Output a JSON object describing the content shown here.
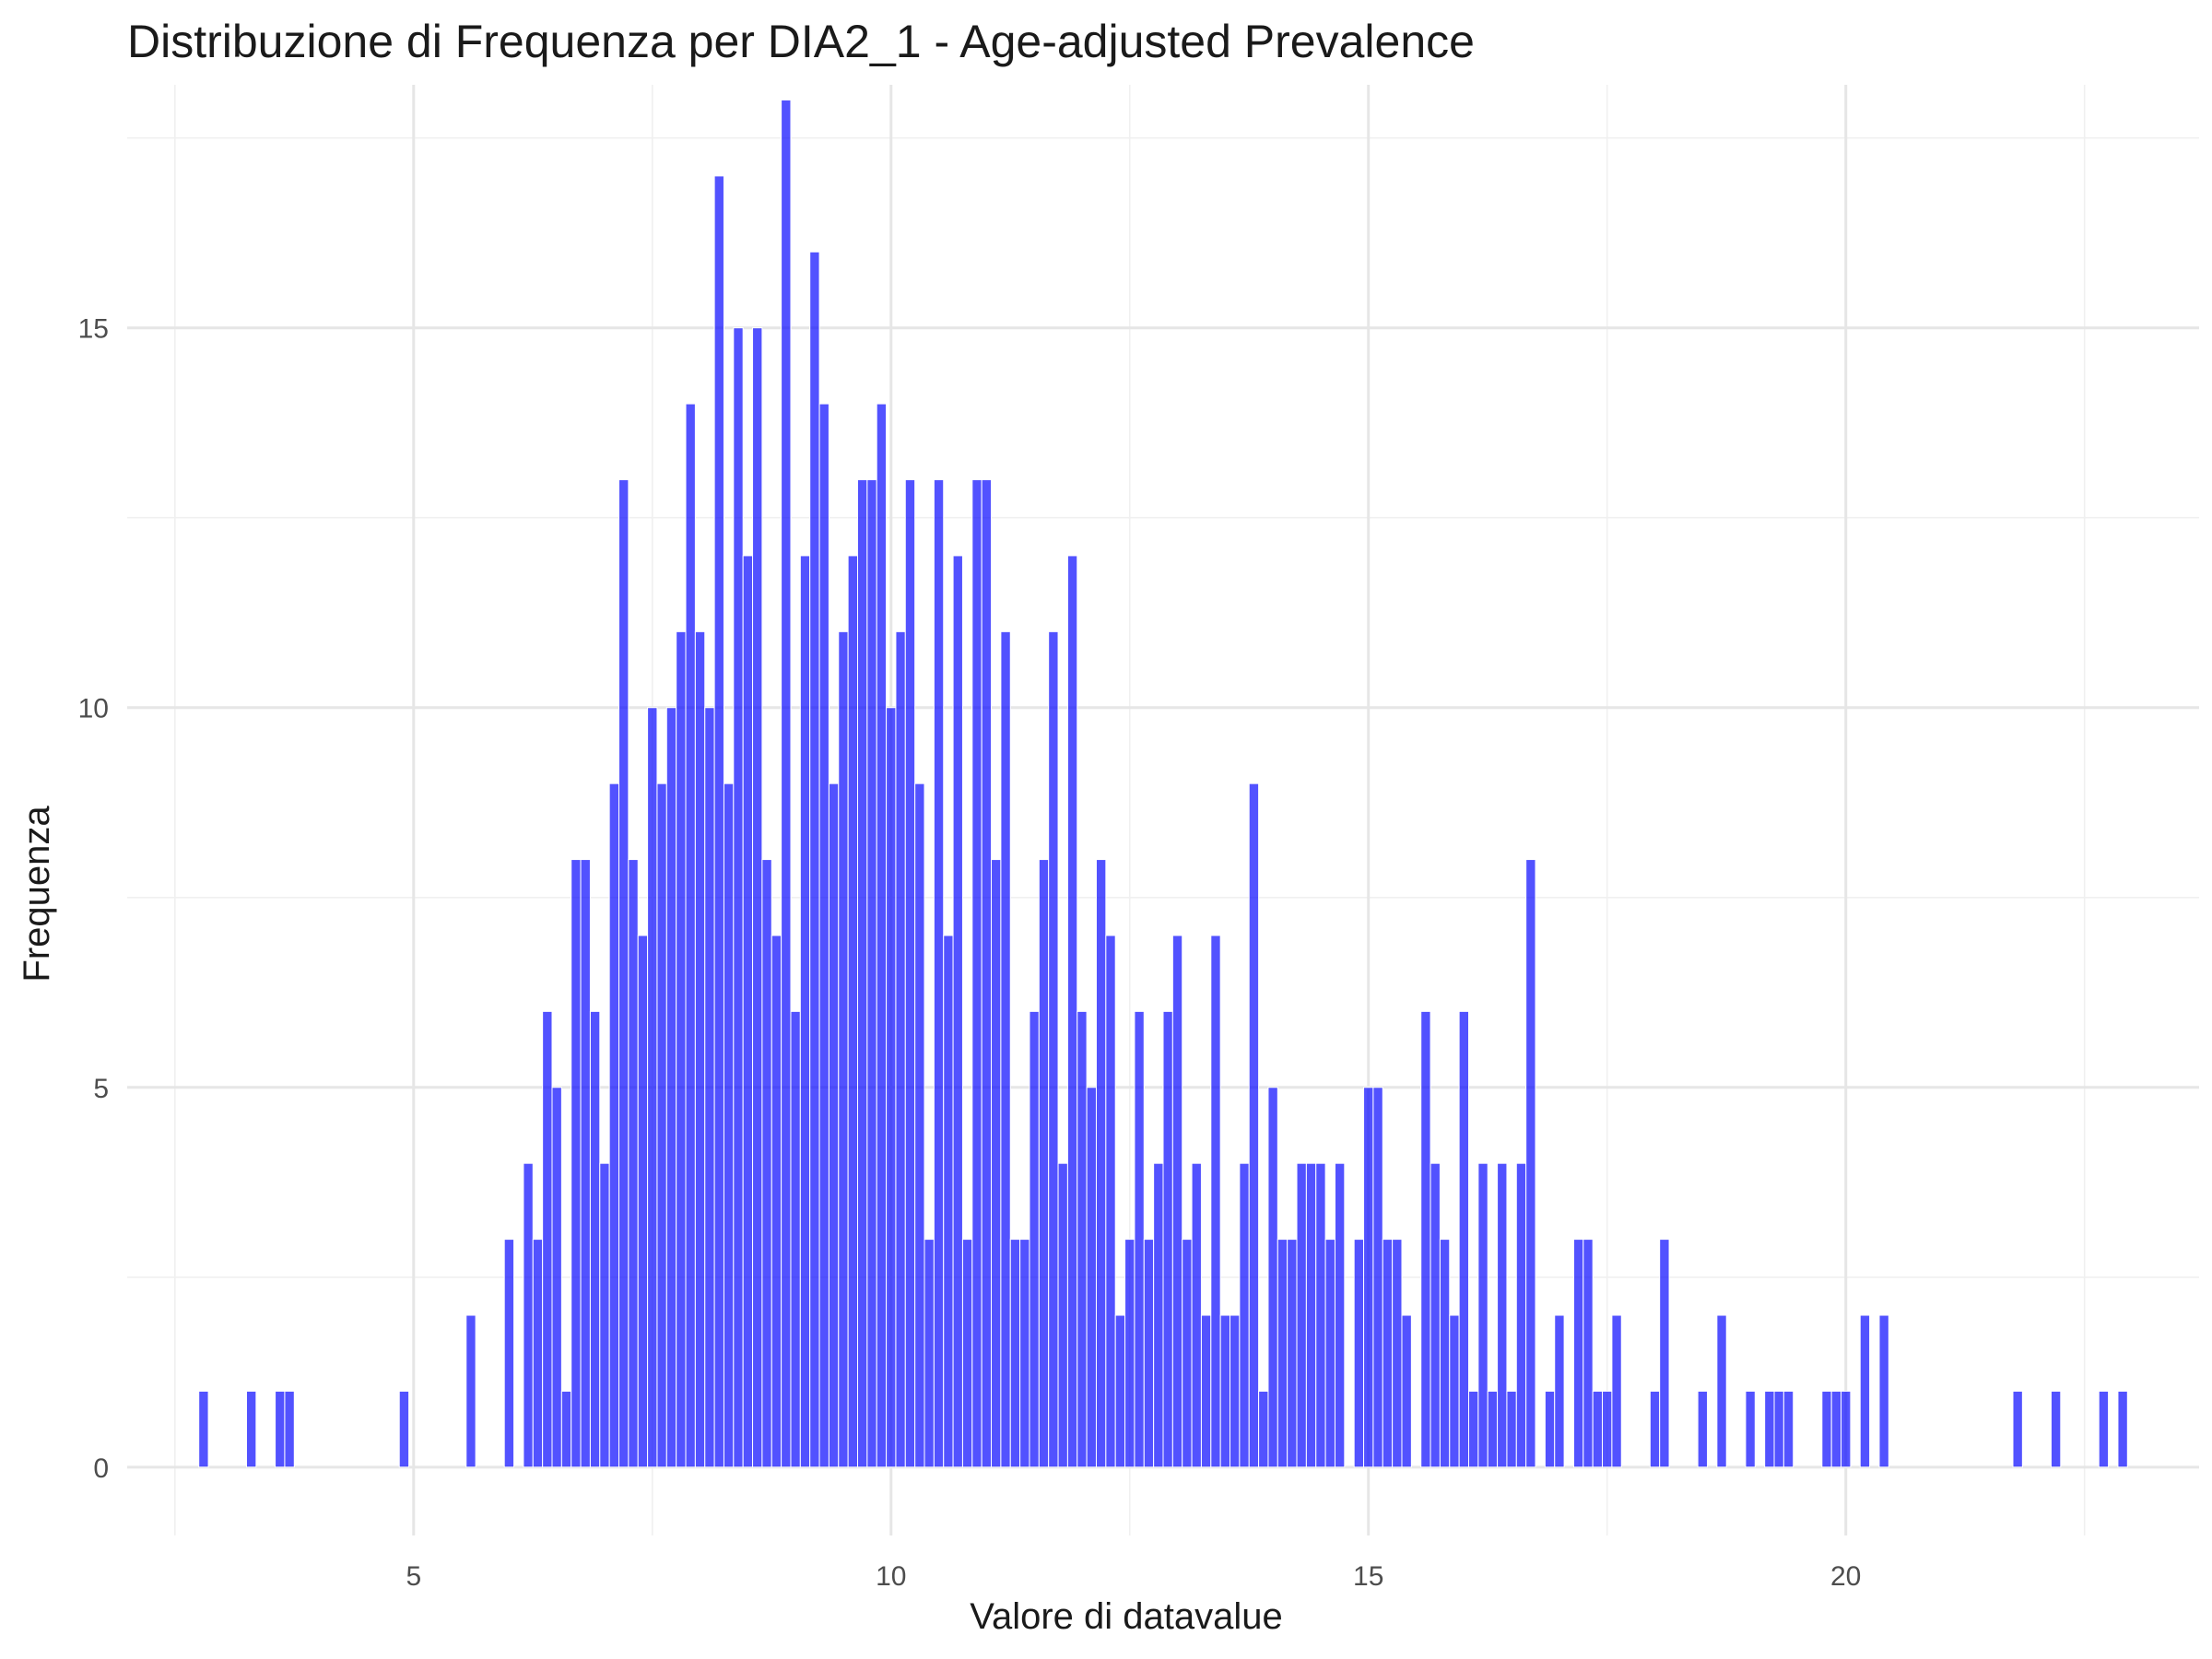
{
  "chart_data": {
    "type": "bar",
    "title": "Distribuzione di Frequenza per DIA2_1 - Age-adjusted Prevalence",
    "xlabel": "Valore di datavalue",
    "ylabel": "Frequenza",
    "xlim": [
      2.0,
      23.7
    ],
    "ylim": [
      -0.9,
      18.2
    ],
    "x_ticks": [
      5,
      10,
      15,
      20
    ],
    "x_tick_labels": [
      "5",
      "10",
      "15",
      "20"
    ],
    "y_ticks": [
      0,
      5,
      10,
      15
    ],
    "y_tick_labels": [
      "0",
      "5",
      "10",
      "15"
    ],
    "x_minor_ticks": [
      2.5,
      7.5,
      12.5,
      17.5,
      22.5
    ],
    "y_minor_ticks": [
      2.5,
      7.5,
      12.5,
      17.5
    ],
    "bin_width": 0.1,
    "color": "#0000ff",
    "grid": true,
    "legend": "none",
    "x": [
      2.8,
      3.3,
      3.6,
      3.7,
      4.9,
      5.6,
      6.0,
      6.2,
      6.3,
      6.4,
      6.5,
      6.6,
      6.7,
      6.8,
      6.9,
      7.0,
      7.1,
      7.2,
      7.3,
      7.4,
      7.5,
      7.6,
      7.7,
      7.8,
      7.9,
      8.0,
      8.1,
      8.2,
      8.3,
      8.4,
      8.5,
      8.6,
      8.7,
      8.8,
      8.9,
      9.0,
      9.1,
      9.2,
      9.3,
      9.4,
      9.5,
      9.6,
      9.7,
      9.8,
      9.9,
      10.0,
      10.1,
      10.2,
      10.3,
      10.4,
      10.5,
      10.6,
      10.7,
      10.8,
      10.9,
      11.0,
      11.1,
      11.2,
      11.3,
      11.4,
      11.5,
      11.6,
      11.7,
      11.8,
      11.9,
      12.0,
      12.1,
      12.2,
      12.3,
      12.4,
      12.5,
      12.6,
      12.7,
      12.8,
      12.9,
      13.0,
      13.1,
      13.2,
      13.3,
      13.4,
      13.5,
      13.6,
      13.7,
      13.8,
      13.9,
      14.0,
      14.1,
      14.2,
      14.3,
      14.4,
      14.5,
      14.6,
      14.7,
      14.9,
      15.0,
      15.1,
      15.2,
      15.3,
      15.4,
      15.6,
      15.7,
      15.8,
      15.9,
      16.0,
      16.1,
      16.2,
      16.3,
      16.4,
      16.5,
      16.6,
      16.7,
      16.9,
      17.0,
      17.2,
      17.3,
      17.4,
      17.5,
      17.6,
      18.0,
      18.1,
      18.5,
      18.7,
      19.0,
      19.2,
      19.3,
      19.4,
      19.8,
      19.9,
      20.0,
      20.2,
      20.4,
      21.8,
      22.2,
      22.7,
      22.9
    ],
    "values": [
      1,
      1,
      1,
      1,
      1,
      2,
      3,
      4,
      3,
      6,
      5,
      1,
      8,
      8,
      6,
      4,
      9,
      13,
      8,
      7,
      10,
      9,
      10,
      11,
      14,
      11,
      10,
      17,
      9,
      15,
      12,
      15,
      8,
      7,
      18,
      6,
      12,
      16,
      14,
      9,
      11,
      12,
      13,
      13,
      14,
      10,
      11,
      13,
      9,
      3,
      13,
      7,
      12,
      3,
      13,
      13,
      8,
      11,
      3,
      3,
      6,
      8,
      11,
      4,
      12,
      6,
      5,
      8,
      7,
      2,
      3,
      6,
      3,
      4,
      6,
      7,
      3,
      4,
      2,
      7,
      2,
      2,
      4,
      9,
      1,
      5,
      3,
      3,
      4,
      4,
      4,
      3,
      4,
      3,
      5,
      5,
      3,
      3,
      2,
      6,
      4,
      3,
      2,
      6,
      1,
      4,
      1,
      4,
      1,
      4,
      8,
      1,
      2,
      3,
      3,
      1,
      1,
      2,
      1,
      3,
      1,
      2,
      1,
      1,
      1,
      1,
      1,
      1,
      1,
      2,
      2,
      1,
      1,
      1,
      1
    ]
  }
}
